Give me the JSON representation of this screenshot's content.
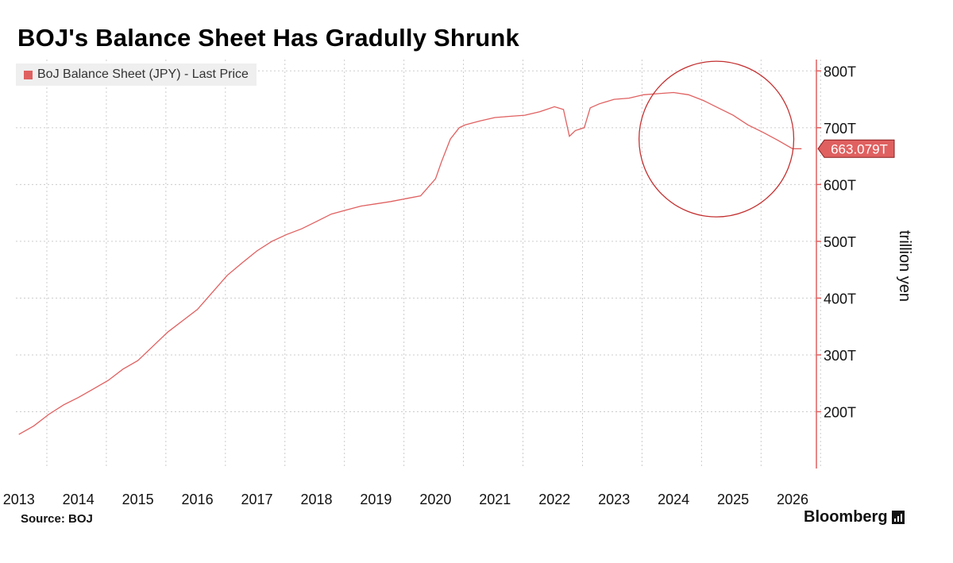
{
  "chart_data": {
    "type": "line",
    "title": "BOJ's Balance Sheet Has Gradully Shrunk",
    "ylabel": "trillion yen",
    "ylim": [
      100,
      820
    ],
    "yticks": [
      200,
      300,
      400,
      500,
      600,
      700,
      800
    ],
    "ytick_labels": [
      "200T",
      "300T",
      "400T",
      "500T",
      "600T",
      "700T",
      "800T"
    ],
    "x_range": [
      2012.95,
      2026.4
    ],
    "xticks": [
      2013,
      2014,
      2015,
      2016,
      2017,
      2018,
      2019,
      2020,
      2021,
      2022,
      2023,
      2024,
      2025,
      2026
    ],
    "xtick_labels": [
      "2013",
      "2014",
      "2015",
      "2016",
      "2017",
      "2018",
      "2019",
      "2020",
      "2021",
      "2022",
      "2023",
      "2024",
      "2025",
      "2026"
    ],
    "grid": true,
    "legend_position": "top-left",
    "last_value_label": "663.079T",
    "series": [
      {
        "name": "BoJ Balance Sheet (JPY) - Last Price",
        "color": "#e06060",
        "x": [
          2013.0,
          2013.25,
          2013.5,
          2013.75,
          2014.0,
          2014.25,
          2014.5,
          2014.75,
          2015.0,
          2015.25,
          2015.5,
          2015.75,
          2016.0,
          2016.25,
          2016.5,
          2016.75,
          2017.0,
          2017.25,
          2017.5,
          2017.75,
          2018.0,
          2018.25,
          2018.5,
          2018.75,
          2019.0,
          2019.25,
          2019.5,
          2019.75,
          2020.0,
          2020.1,
          2020.25,
          2020.4,
          2020.5,
          2020.75,
          2021.0,
          2021.25,
          2021.5,
          2021.75,
          2022.0,
          2022.15,
          2022.25,
          2022.35,
          2022.5,
          2022.6,
          2022.75,
          2023.0,
          2023.25,
          2023.5,
          2023.75,
          2024.0,
          2024.25,
          2024.5,
          2024.75,
          2025.0,
          2025.25,
          2025.5,
          2025.75,
          2026.0,
          2026.15
        ],
        "values": [
          160,
          175,
          195,
          212,
          225,
          240,
          255,
          275,
          290,
          315,
          340,
          360,
          380,
          410,
          440,
          462,
          483,
          500,
          512,
          522,
          535,
          548,
          555,
          562,
          566,
          570,
          575,
          580,
          610,
          640,
          680,
          700,
          705,
          712,
          718,
          720,
          722,
          728,
          737,
          732,
          685,
          695,
          700,
          735,
          742,
          750,
          752,
          758,
          760,
          762,
          758,
          748,
          735,
          722,
          705,
          692,
          678,
          663,
          663
        ]
      }
    ],
    "annotations": [
      {
        "type": "circle",
        "note": "highlight",
        "center": [
          2024.72,
          680
        ],
        "radius_x_years": 1.3,
        "radius_y_value": 137
      }
    ]
  },
  "source": "Source: BOJ",
  "brand": "Bloomberg",
  "colors": {
    "line": "#e06060",
    "axis": "#e06060",
    "grid": "#cccccc",
    "label_box": "#e06060",
    "circle": "#c33030"
  }
}
